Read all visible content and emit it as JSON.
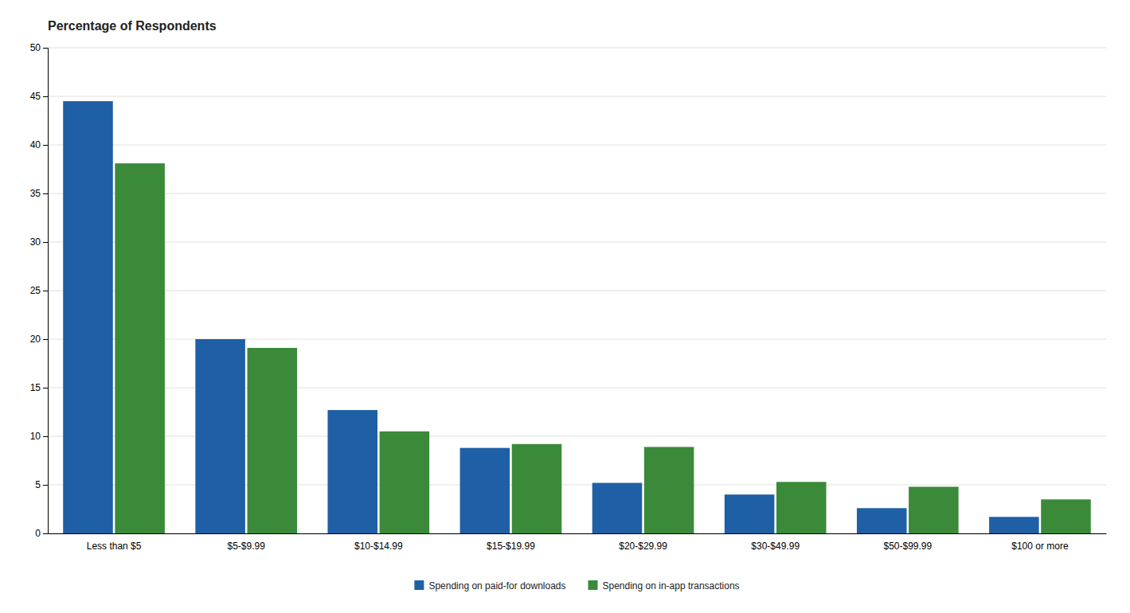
{
  "chart_data": {
    "type": "bar",
    "title": "Percentage of Respondents",
    "categories": [
      "Less than $5",
      "$5-$9.99",
      "$10-$14.99",
      "$15-$19.99",
      "$20-$29.99",
      "$30-$49.99",
      "$50-$99.99",
      "$100 or more"
    ],
    "series": [
      {
        "name": "Spending on paid-for downloads",
        "color": "#1F5FA6",
        "values": [
          44.5,
          20.0,
          12.7,
          8.8,
          5.2,
          4.0,
          2.6,
          1.7
        ]
      },
      {
        "name": "Spending on in-app transactions",
        "color": "#3A8A3A",
        "values": [
          38.1,
          19.1,
          10.5,
          9.2,
          8.9,
          5.3,
          4.8,
          3.5
        ]
      }
    ],
    "ylim": [
      0,
      50
    ],
    "yticks": [
      0,
      5,
      10,
      15,
      20,
      25,
      30,
      35,
      40,
      45,
      50
    ],
    "grid": true,
    "legend": "bottom"
  }
}
